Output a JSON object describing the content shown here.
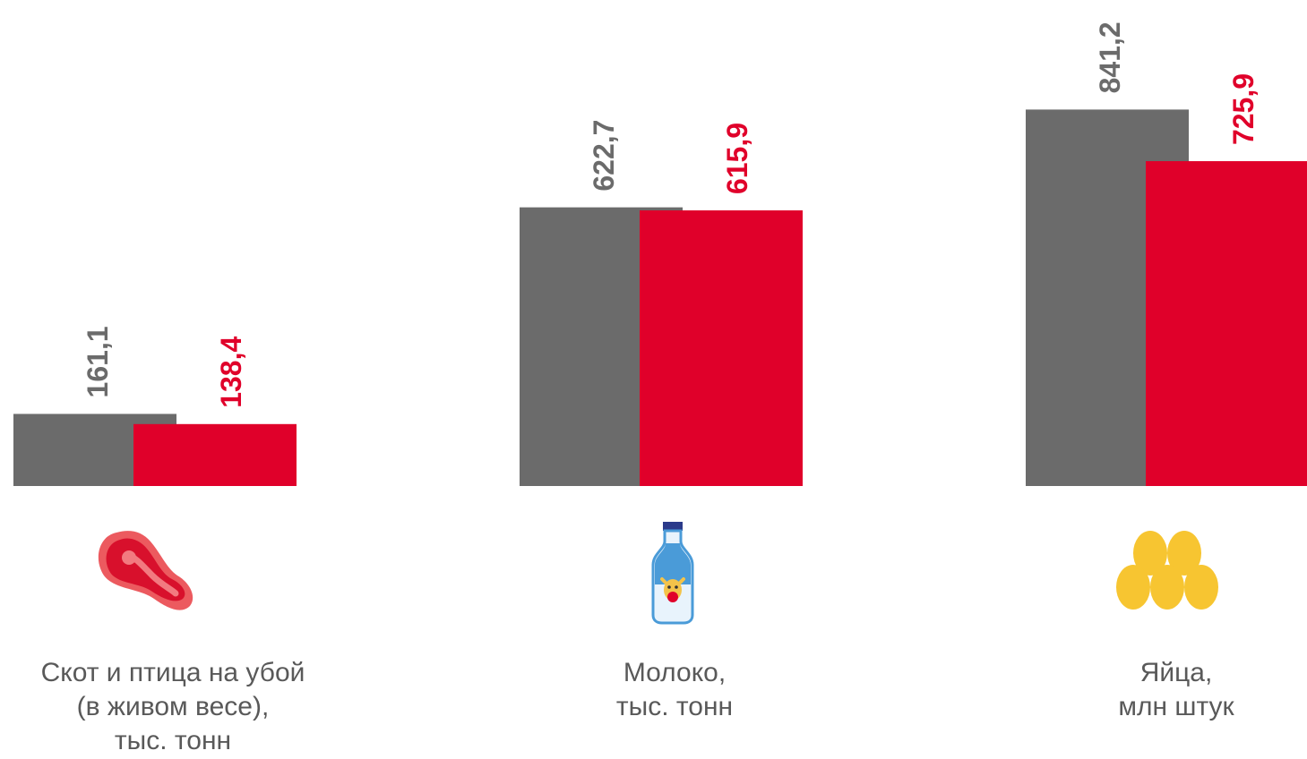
{
  "colors": {
    "series_a": "#6b6b6b",
    "series_b": "#e0002a",
    "label_text": "#595959"
  },
  "chart_data": {
    "type": "bar",
    "categories": [
      {
        "key": "livestock",
        "label_lines": [
          "Скот и птица на убой",
          "(в живом весе),",
          "тыс. тонн"
        ],
        "icon": "meat-steak-icon",
        "values": [
          161.1,
          138.4
        ],
        "value_labels": [
          "161,1",
          "138,4"
        ],
        "ylim": [
          0,
          900
        ]
      },
      {
        "key": "milk",
        "label_lines": [
          "Молоко,",
          "тыс. тонн"
        ],
        "icon": "milk-bottle-icon",
        "values": [
          622.7,
          615.9
        ],
        "value_labels": [
          "622,7",
          "615,9"
        ],
        "ylim": [
          0,
          900
        ]
      },
      {
        "key": "eggs",
        "label_lines": [
          "Яйца,",
          "млн штук"
        ],
        "icon": "eggs-icon",
        "values": [
          841.2,
          725.9
        ],
        "value_labels": [
          "841,2",
          "725,9"
        ],
        "ylim": [
          0,
          900
        ]
      }
    ],
    "series": [
      {
        "color": "#6b6b6b"
      },
      {
        "color": "#e0002a"
      }
    ],
    "grid": false,
    "legend": "none"
  }
}
